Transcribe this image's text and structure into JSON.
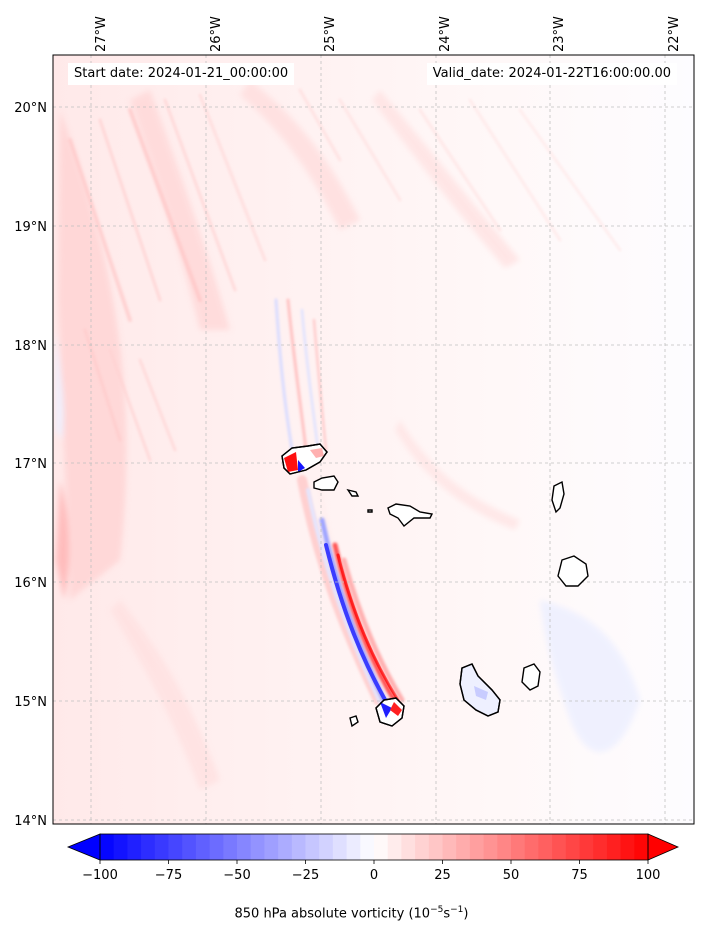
{
  "map": {
    "start_label": "Start date: 2024-01-21_00:00:00",
    "valid_label": "Valid_date: 2024-01-22T16:00:00.00",
    "lon_labels": [
      "27°W",
      "26°W",
      "25°W",
      "24°W",
      "23°W",
      "22°W"
    ],
    "lat_labels": [
      "20°N",
      "19°N",
      "18°N",
      "17°N",
      "16°N",
      "15°N",
      "14°N"
    ],
    "extent": {
      "lon_min": -27.33,
      "lon_max": -21.76,
      "lat_min": 13.95,
      "lat_max": 20.43
    },
    "field": "850 hPa absolute vorticity",
    "grid": true
  },
  "colorbar": {
    "label_text": "850 hPa absolute vorticity (10",
    "label_exp1": "−5",
    "label_mid": "s",
    "label_exp2": "−1",
    "label_close": ")",
    "tick_labels": [
      "−100",
      "−75",
      "−50",
      "−25",
      "0",
      "25",
      "50",
      "75",
      "100"
    ],
    "ticks": [
      -100,
      -75,
      -50,
      -25,
      0,
      25,
      50,
      75,
      100
    ],
    "min": -100,
    "max": 100,
    "levels": 40,
    "colormap": "bwr",
    "extend": "both",
    "colors": {
      "low": "#0000ff",
      "mid": "#ffffff",
      "high": "#ff0000"
    }
  },
  "islands": [
    "Santo Antão",
    "São Vicente",
    "Santa Luzia",
    "São Nicolau",
    "Sal",
    "Boa Vista",
    "Maio",
    "Santiago",
    "Fogo",
    "Brava"
  ]
}
